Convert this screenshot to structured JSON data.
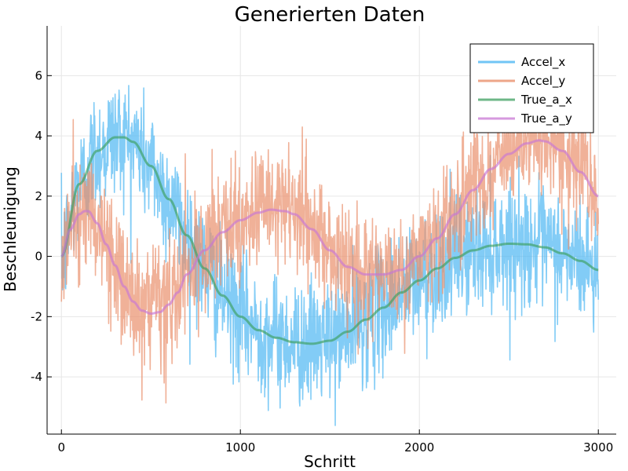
{
  "chart_data": {
    "type": "line",
    "title": "Generierten Daten",
    "xlabel": "Schritt",
    "ylabel": "Beschleunigung",
    "xlim": [
      -80,
      3100
    ],
    "ylim": [
      -5.9,
      7.65
    ],
    "xticks": [
      0,
      1000,
      2000,
      3000
    ],
    "xtick_labels": [
      "0",
      "1000",
      "2000",
      "3000"
    ],
    "yticks": [
      -4,
      -2,
      0,
      2,
      4,
      6
    ],
    "ytick_labels": [
      "-4",
      "-2",
      "0",
      "2",
      "4",
      "6"
    ],
    "grid": true,
    "legend_position": "top-right",
    "series": [
      {
        "name": "Accel_x",
        "color": "#4db7f2",
        "noise_amplitude": 1.0,
        "x": [
          0,
          100,
          200,
          300,
          350,
          400,
          500,
          600,
          700,
          800,
          900,
          1000,
          1100,
          1200,
          1300,
          1400,
          1500,
          1600,
          1700,
          1800,
          1900,
          2000,
          2100,
          2200,
          2300,
          2400,
          2500,
          2600,
          2700,
          2800,
          2900,
          3000
        ],
        "y": [
          0.0,
          2.4,
          3.5,
          3.95,
          3.95,
          3.8,
          3.0,
          1.9,
          0.7,
          -0.4,
          -1.3,
          -2.0,
          -2.45,
          -2.7,
          -2.85,
          -2.9,
          -2.8,
          -2.5,
          -2.1,
          -1.7,
          -1.2,
          -0.8,
          -0.4,
          -0.05,
          0.2,
          0.35,
          0.42,
          0.4,
          0.3,
          0.1,
          -0.15,
          -0.45
        ]
      },
      {
        "name": "Accel_y",
        "color": "#e9906c",
        "noise_amplitude": 1.0,
        "x": [
          0,
          50,
          100,
          130,
          150,
          200,
          250,
          300,
          350,
          400,
          450,
          500,
          550,
          600,
          650,
          700,
          800,
          900,
          1000,
          1100,
          1170,
          1250,
          1300,
          1400,
          1500,
          1600,
          1700,
          1800,
          1900,
          2000,
          2100,
          2200,
          2300,
          2400,
          2500,
          2600,
          2670,
          2700,
          2800,
          2900,
          3000
        ],
        "y": [
          0.0,
          0.9,
          1.4,
          1.5,
          1.5,
          1.1,
          0.4,
          -0.3,
          -1.0,
          -1.5,
          -1.8,
          -1.9,
          -1.85,
          -1.6,
          -1.2,
          -0.6,
          0.2,
          0.8,
          1.2,
          1.45,
          1.55,
          1.5,
          1.4,
          0.9,
          0.2,
          -0.35,
          -0.6,
          -0.6,
          -0.45,
          0.0,
          0.6,
          1.4,
          2.2,
          2.9,
          3.4,
          3.75,
          3.85,
          3.82,
          3.5,
          2.8,
          2.0
        ]
      },
      {
        "name": "True_a_x",
        "color": "#3c9f5f",
        "x": [
          0,
          100,
          200,
          300,
          350,
          400,
          500,
          600,
          700,
          800,
          900,
          1000,
          1100,
          1200,
          1300,
          1400,
          1500,
          1600,
          1700,
          1800,
          1900,
          2000,
          2100,
          2200,
          2300,
          2400,
          2500,
          2600,
          2700,
          2800,
          2900,
          3000
        ],
        "y": [
          0.0,
          2.4,
          3.5,
          3.95,
          3.95,
          3.8,
          3.0,
          1.9,
          0.7,
          -0.4,
          -1.3,
          -2.0,
          -2.45,
          -2.7,
          -2.85,
          -2.9,
          -2.8,
          -2.5,
          -2.1,
          -1.7,
          -1.2,
          -0.8,
          -0.4,
          -0.05,
          0.2,
          0.35,
          0.42,
          0.4,
          0.3,
          0.1,
          -0.15,
          -0.45
        ]
      },
      {
        "name": "True_a_y",
        "color": "#c877d4",
        "x": [
          0,
          50,
          100,
          130,
          150,
          200,
          250,
          300,
          350,
          400,
          450,
          500,
          550,
          600,
          650,
          700,
          800,
          900,
          1000,
          1100,
          1170,
          1250,
          1300,
          1400,
          1500,
          1600,
          1700,
          1800,
          1900,
          2000,
          2100,
          2200,
          2300,
          2400,
          2500,
          2600,
          2670,
          2700,
          2800,
          2900,
          3000
        ],
        "y": [
          0.0,
          0.9,
          1.4,
          1.5,
          1.5,
          1.1,
          0.4,
          -0.3,
          -1.0,
          -1.5,
          -1.8,
          -1.9,
          -1.85,
          -1.6,
          -1.2,
          -0.6,
          0.2,
          0.8,
          1.2,
          1.45,
          1.55,
          1.5,
          1.4,
          0.9,
          0.2,
          -0.35,
          -0.6,
          -0.6,
          -0.45,
          0.0,
          0.6,
          1.4,
          2.2,
          2.9,
          3.4,
          3.75,
          3.85,
          3.82,
          3.5,
          2.8,
          2.0
        ]
      }
    ]
  }
}
